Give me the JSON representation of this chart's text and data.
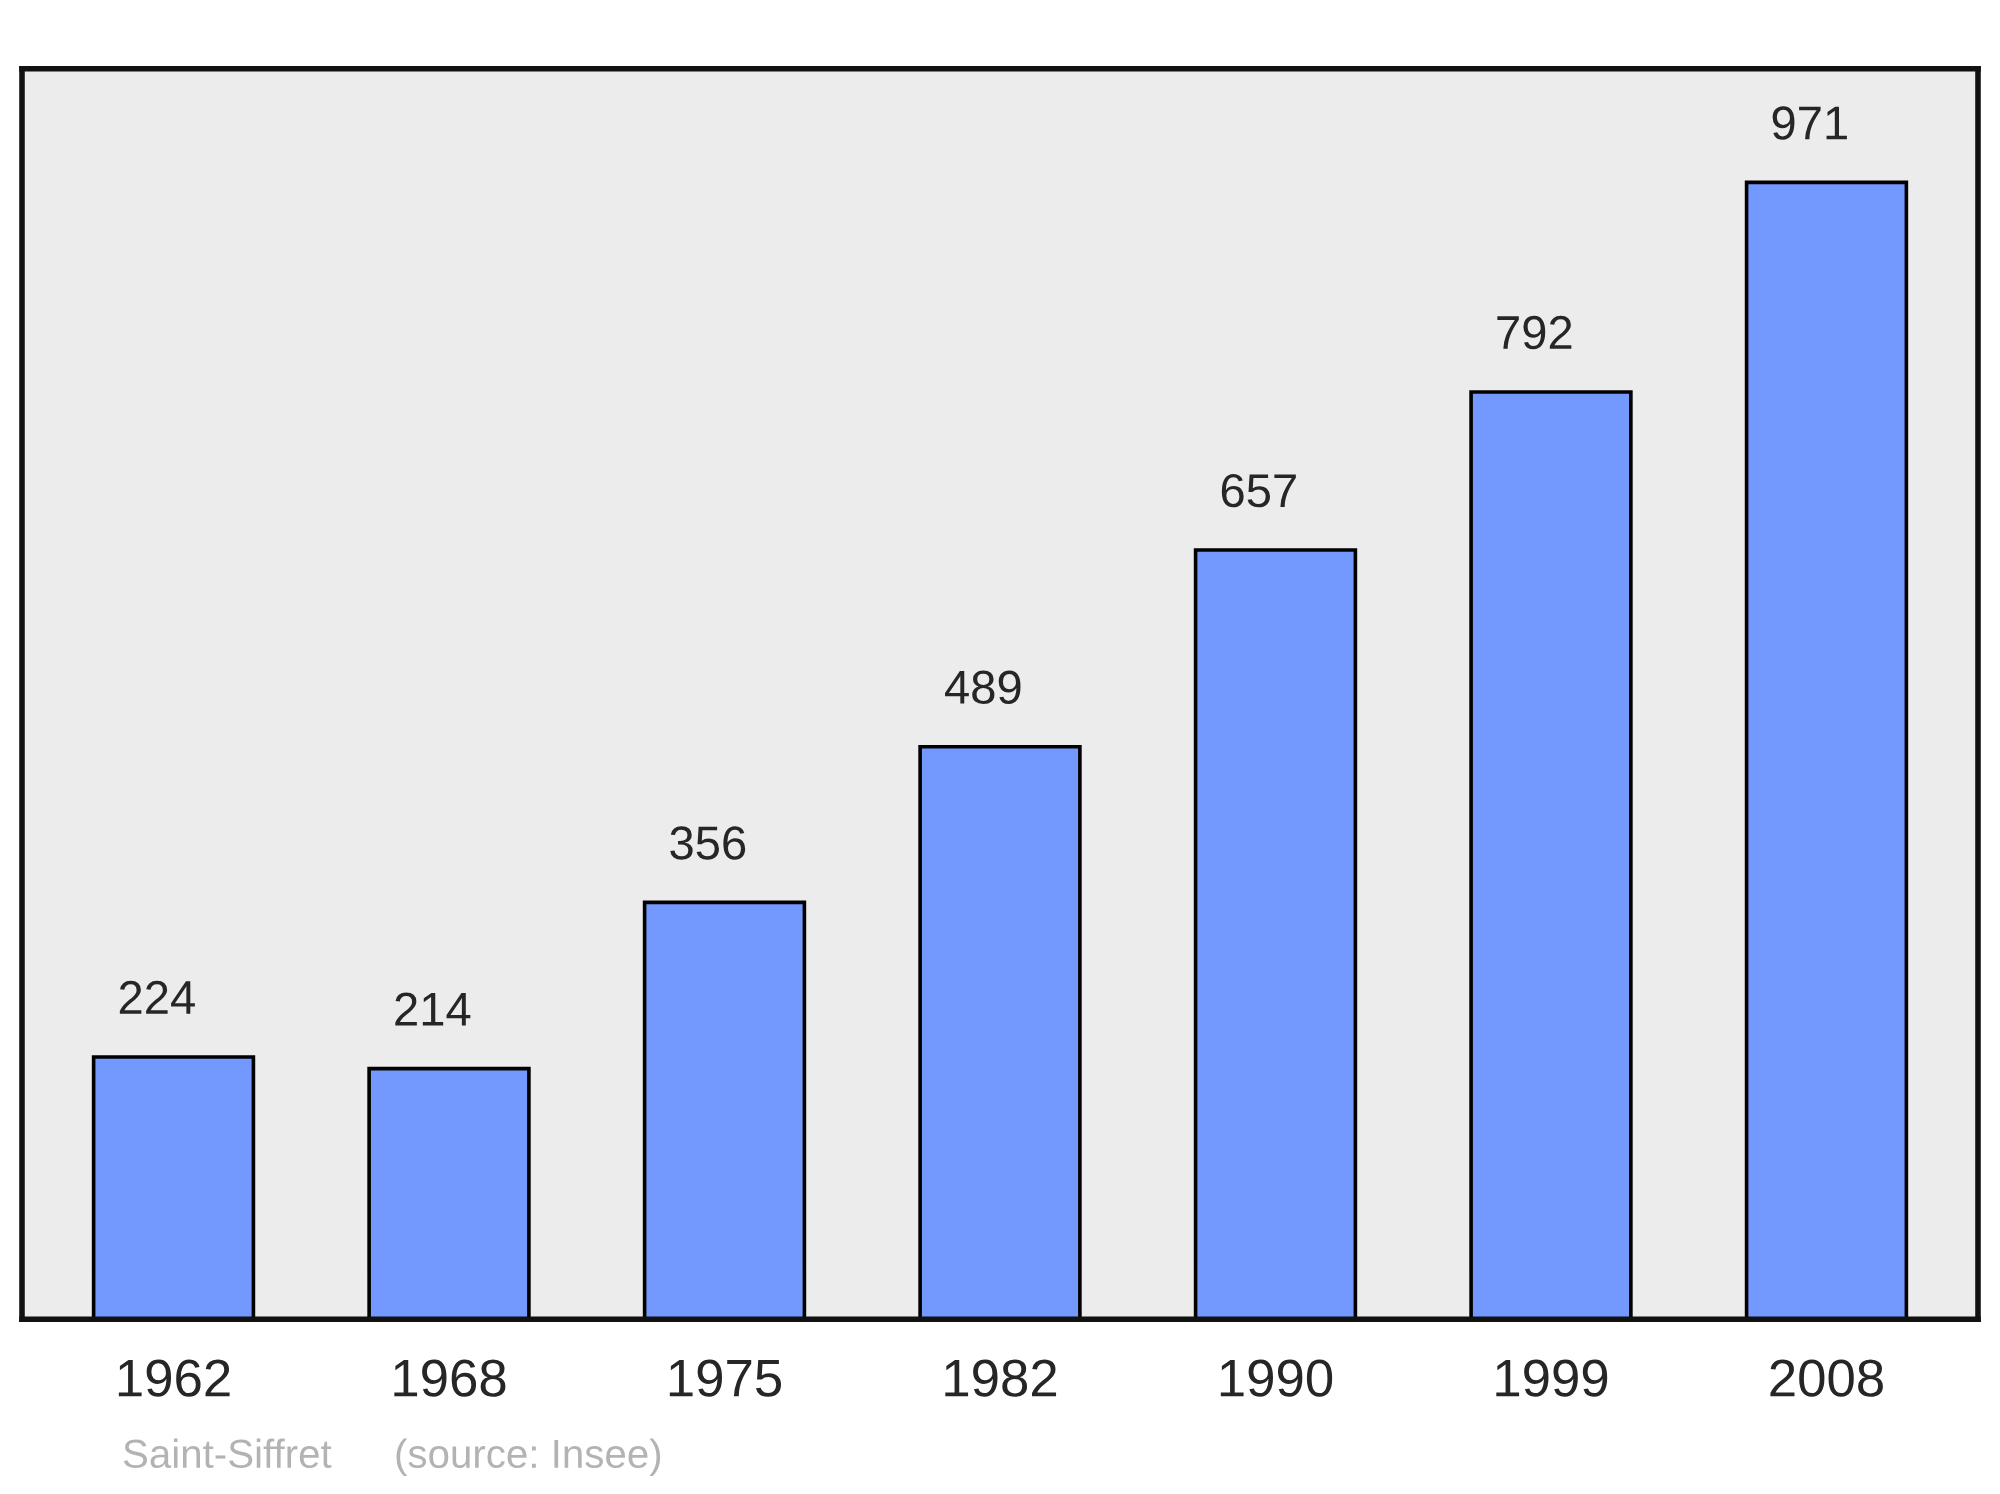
{
  "chart_data": {
    "type": "bar",
    "categories": [
      "1962",
      "1968",
      "1975",
      "1982",
      "1990",
      "1999",
      "2008"
    ],
    "values": [
      224,
      214,
      356,
      489,
      657,
      792,
      971
    ],
    "color": "#7399ff",
    "data_labels": true,
    "grid": false,
    "annotations": [
      "Saint-Siffret",
      "(source: Insee)"
    ]
  }
}
